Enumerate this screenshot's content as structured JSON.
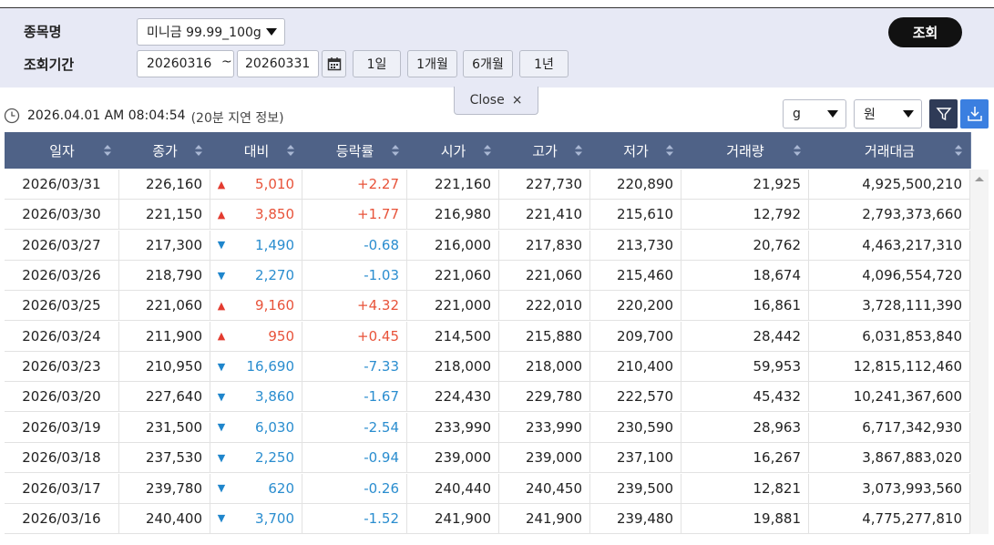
{
  "search": {
    "item_label": "종목명",
    "period_label": "조회기간",
    "item_select": "미니금 99.99_100g",
    "date_from": "20260316",
    "date_sep": "~",
    "date_to": "20260331",
    "range_buttons": [
      "1일",
      "1개월",
      "6개월",
      "1년"
    ],
    "submit": "조회",
    "close": "Close",
    "close_icon": "×"
  },
  "info": {
    "timestamp": "2026.04.01 AM 08:04:54",
    "delay_note": "(20분 지연 정보)",
    "unit_select": "g",
    "currency_select": "원"
  },
  "table": {
    "headers": [
      "일자",
      "종가",
      "대비",
      "등락률",
      "시가",
      "고가",
      "저가",
      "거래량",
      "거래대금"
    ],
    "rows": [
      [
        "2026/03/31",
        "226,160",
        "▲",
        "5,010",
        "+2.27",
        "221,160",
        "227,730",
        "220,890",
        "21,925",
        "4,925,500,210"
      ],
      [
        "2026/03/30",
        "221,150",
        "▲",
        "3,850",
        "+1.77",
        "216,980",
        "221,410",
        "215,610",
        "12,792",
        "2,793,373,660"
      ],
      [
        "2026/03/27",
        "217,300",
        "▼",
        "1,490",
        "-0.68",
        "216,000",
        "217,830",
        "213,730",
        "20,762",
        "4,463,217,310"
      ],
      [
        "2026/03/26",
        "218,790",
        "▼",
        "2,270",
        "-1.03",
        "221,060",
        "221,060",
        "215,460",
        "18,674",
        "4,096,554,720"
      ],
      [
        "2026/03/25",
        "221,060",
        "▲",
        "9,160",
        "+4.32",
        "221,000",
        "222,010",
        "220,200",
        "16,861",
        "3,728,111,390"
      ],
      [
        "2026/03/24",
        "211,900",
        "▲",
        "950",
        "+0.45",
        "214,500",
        "215,880",
        "209,700",
        "28,442",
        "6,031,853,840"
      ],
      [
        "2026/03/23",
        "210,950",
        "▼",
        "16,690",
        "-7.33",
        "218,000",
        "218,000",
        "210,400",
        "59,953",
        "12,815,112,460"
      ],
      [
        "2026/03/20",
        "227,640",
        "▼",
        "3,860",
        "-1.67",
        "224,430",
        "229,780",
        "222,570",
        "45,432",
        "10,241,367,600"
      ],
      [
        "2026/03/19",
        "231,500",
        "▼",
        "6,030",
        "-2.54",
        "233,990",
        "233,990",
        "230,590",
        "28,963",
        "6,717,342,930"
      ],
      [
        "2026/03/18",
        "237,530",
        "▼",
        "2,250",
        "-0.94",
        "239,000",
        "239,000",
        "237,100",
        "16,267",
        "3,867,883,020"
      ],
      [
        "2026/03/17",
        "239,780",
        "▼",
        "620",
        "-0.26",
        "240,440",
        "240,450",
        "239,500",
        "12,821",
        "3,073,993,560"
      ],
      [
        "2026/03/16",
        "240,400",
        "▼",
        "3,700",
        "-1.52",
        "241,900",
        "241,900",
        "239,480",
        "19,881",
        "4,775,277,810"
      ]
    ]
  }
}
